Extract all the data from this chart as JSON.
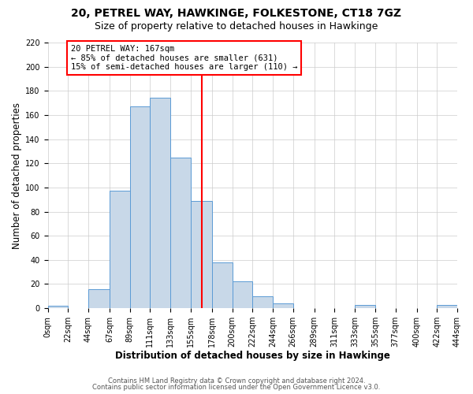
{
  "title": "20, PETREL WAY, HAWKINGE, FOLKESTONE, CT18 7GZ",
  "subtitle": "Size of property relative to detached houses in Hawkinge",
  "xlabel": "Distribution of detached houses by size in Hawkinge",
  "ylabel": "Number of detached properties",
  "bar_left_edges": [
    0,
    22,
    44,
    67,
    89,
    111,
    133,
    155,
    178,
    200,
    222,
    244,
    266,
    289,
    311,
    333,
    355,
    377,
    400,
    422
  ],
  "bar_widths": [
    22,
    22,
    23,
    22,
    22,
    22,
    22,
    23,
    22,
    22,
    22,
    22,
    23,
    22,
    22,
    22,
    22,
    23,
    22,
    22
  ],
  "bar_heights": [
    2,
    0,
    16,
    97,
    167,
    174,
    125,
    89,
    38,
    22,
    10,
    4,
    0,
    0,
    0,
    3,
    0,
    0,
    0,
    3
  ],
  "bar_color": "#c8d8e8",
  "bar_edge_color": "#5b9bd5",
  "vline_x": 167,
  "vline_color": "red",
  "annotation_title": "20 PETREL WAY: 167sqm",
  "annotation_line1": "← 85% of detached houses are smaller (631)",
  "annotation_line2": "15% of semi-detached houses are larger (110) →",
  "annotation_box_color": "red",
  "xlim": [
    0,
    444
  ],
  "ylim": [
    0,
    220
  ],
  "xtick_positions": [
    0,
    22,
    44,
    67,
    89,
    111,
    133,
    155,
    178,
    200,
    222,
    244,
    266,
    289,
    311,
    333,
    355,
    377,
    400,
    422,
    444
  ],
  "xtick_labels": [
    "0sqm",
    "22sqm",
    "44sqm",
    "67sqm",
    "89sqm",
    "111sqm",
    "133sqm",
    "155sqm",
    "178sqm",
    "200sqm",
    "222sqm",
    "244sqm",
    "266sqm",
    "289sqm",
    "311sqm",
    "333sqm",
    "355sqm",
    "377sqm",
    "400sqm",
    "422sqm",
    "444sqm"
  ],
  "ytick_positions": [
    0,
    20,
    40,
    60,
    80,
    100,
    120,
    140,
    160,
    180,
    200,
    220
  ],
  "footer1": "Contains HM Land Registry data © Crown copyright and database right 2024.",
  "footer2": "Contains public sector information licensed under the Open Government Licence v3.0.",
  "background_color": "#ffffff",
  "grid_color": "#cccccc",
  "title_fontsize": 10,
  "subtitle_fontsize": 9,
  "axis_label_fontsize": 8.5,
  "tick_fontsize": 7,
  "footer_fontsize": 6,
  "annotation_fontsize": 7.5
}
